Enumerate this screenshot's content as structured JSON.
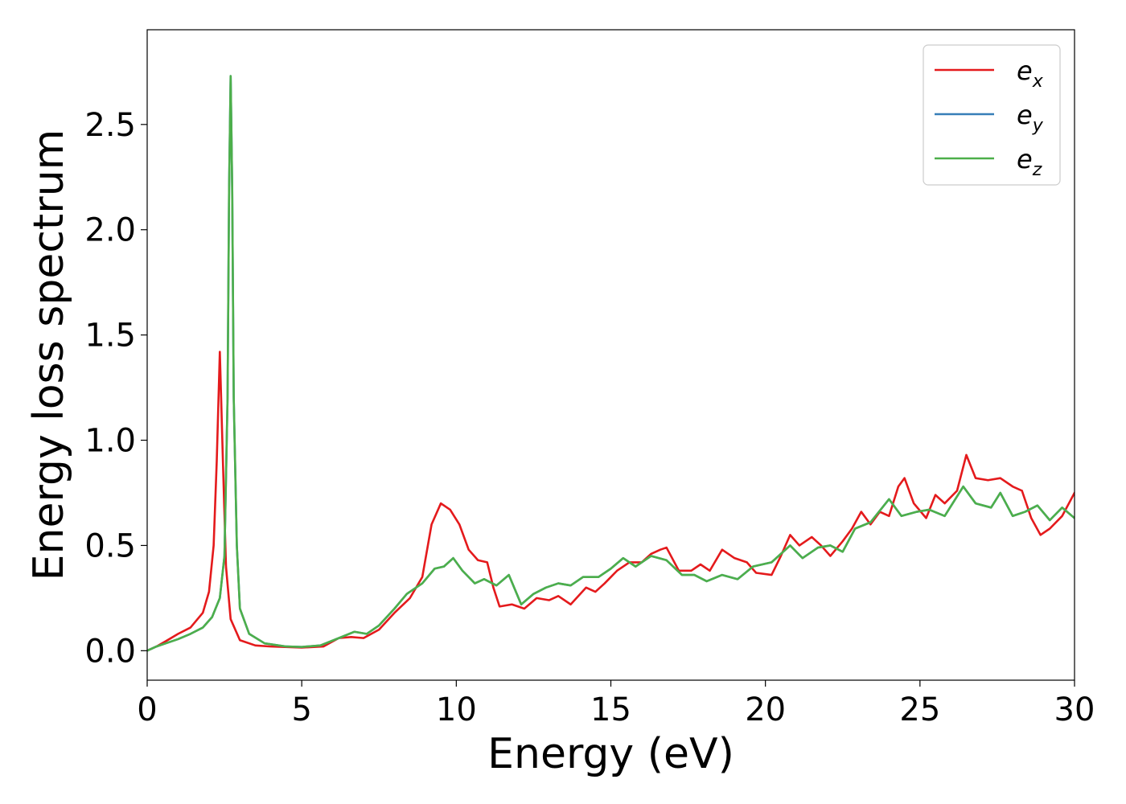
{
  "chart_data": {
    "type": "line",
    "title": "",
    "xlabel": "Energy (eV)",
    "ylabel": "Energy loss spectrum",
    "xlim": [
      0,
      30
    ],
    "ylim": [
      -0.14,
      2.95
    ],
    "xticks": [
      0,
      5,
      10,
      15,
      20,
      25,
      30
    ],
    "yticks": [
      0.0,
      0.5,
      1.0,
      1.5,
      2.0,
      2.5
    ],
    "xtick_labels": [
      "0",
      "5",
      "10",
      "15",
      "20",
      "25",
      "30"
    ],
    "ytick_labels": [
      "0.0",
      "0.5",
      "1.0",
      "1.5",
      "2.0",
      "2.5"
    ],
    "grid": false,
    "legend_position": "top-right",
    "series": [
      {
        "name": "e",
        "sub": "x",
        "color": "#e41a1c",
        "points": [
          [
            0,
            0.0
          ],
          [
            0.3,
            0.02
          ],
          [
            0.6,
            0.045
          ],
          [
            1.0,
            0.08
          ],
          [
            1.4,
            0.11
          ],
          [
            1.8,
            0.18
          ],
          [
            2.0,
            0.28
          ],
          [
            2.15,
            0.5
          ],
          [
            2.25,
            0.9
          ],
          [
            2.35,
            1.42
          ],
          [
            2.45,
            0.9
          ],
          [
            2.55,
            0.4
          ],
          [
            2.7,
            0.15
          ],
          [
            3.0,
            0.05
          ],
          [
            3.5,
            0.025
          ],
          [
            4.0,
            0.02
          ],
          [
            5.0,
            0.015
          ],
          [
            5.7,
            0.02
          ],
          [
            6.2,
            0.06
          ],
          [
            6.6,
            0.065
          ],
          [
            7.0,
            0.06
          ],
          [
            7.5,
            0.1
          ],
          [
            8.0,
            0.18
          ],
          [
            8.5,
            0.25
          ],
          [
            8.9,
            0.35
          ],
          [
            9.2,
            0.6
          ],
          [
            9.5,
            0.7
          ],
          [
            9.8,
            0.67
          ],
          [
            10.1,
            0.6
          ],
          [
            10.4,
            0.48
          ],
          [
            10.7,
            0.43
          ],
          [
            11.0,
            0.42
          ],
          [
            11.2,
            0.3
          ],
          [
            11.4,
            0.21
          ],
          [
            11.8,
            0.22
          ],
          [
            12.2,
            0.2
          ],
          [
            12.6,
            0.25
          ],
          [
            13.0,
            0.24
          ],
          [
            13.3,
            0.26
          ],
          [
            13.7,
            0.22
          ],
          [
            14.2,
            0.3
          ],
          [
            14.5,
            0.28
          ],
          [
            14.8,
            0.32
          ],
          [
            15.2,
            0.38
          ],
          [
            15.6,
            0.42
          ],
          [
            16.0,
            0.42
          ],
          [
            16.3,
            0.46
          ],
          [
            16.6,
            0.48
          ],
          [
            16.8,
            0.49
          ],
          [
            17.2,
            0.38
          ],
          [
            17.6,
            0.38
          ],
          [
            17.9,
            0.41
          ],
          [
            18.2,
            0.38
          ],
          [
            18.6,
            0.48
          ],
          [
            19.0,
            0.44
          ],
          [
            19.4,
            0.42
          ],
          [
            19.7,
            0.37
          ],
          [
            20.2,
            0.36
          ],
          [
            20.5,
            0.45
          ],
          [
            20.8,
            0.55
          ],
          [
            21.1,
            0.5
          ],
          [
            21.5,
            0.54
          ],
          [
            21.8,
            0.5
          ],
          [
            22.1,
            0.45
          ],
          [
            22.5,
            0.52
          ],
          [
            22.8,
            0.58
          ],
          [
            23.1,
            0.66
          ],
          [
            23.4,
            0.6
          ],
          [
            23.7,
            0.66
          ],
          [
            24.0,
            0.64
          ],
          [
            24.3,
            0.78
          ],
          [
            24.5,
            0.82
          ],
          [
            24.8,
            0.7
          ],
          [
            25.2,
            0.63
          ],
          [
            25.5,
            0.74
          ],
          [
            25.8,
            0.7
          ],
          [
            26.2,
            0.76
          ],
          [
            26.5,
            0.93
          ],
          [
            26.8,
            0.82
          ],
          [
            27.2,
            0.81
          ],
          [
            27.6,
            0.82
          ],
          [
            28.0,
            0.78
          ],
          [
            28.3,
            0.76
          ],
          [
            28.6,
            0.63
          ],
          [
            28.9,
            0.55
          ],
          [
            29.2,
            0.58
          ],
          [
            29.6,
            0.64
          ],
          [
            30.0,
            0.75
          ]
        ]
      },
      {
        "name": "e",
        "sub": "y",
        "color": "#377eb8",
        "points": [
          [
            0,
            0.0
          ],
          [
            0.3,
            0.02
          ],
          [
            0.6,
            0.035
          ],
          [
            1.0,
            0.055
          ],
          [
            1.4,
            0.08
          ],
          [
            1.8,
            0.11
          ],
          [
            2.1,
            0.16
          ],
          [
            2.35,
            0.25
          ],
          [
            2.5,
            0.45
          ],
          [
            2.6,
            1.2
          ],
          [
            2.65,
            2.2
          ],
          [
            2.7,
            2.73
          ],
          [
            2.75,
            2.2
          ],
          [
            2.8,
            1.2
          ],
          [
            2.9,
            0.5
          ],
          [
            3.0,
            0.2
          ],
          [
            3.3,
            0.08
          ],
          [
            3.8,
            0.035
          ],
          [
            4.5,
            0.02
          ],
          [
            5.0,
            0.018
          ],
          [
            5.6,
            0.025
          ],
          [
            6.2,
            0.06
          ],
          [
            6.7,
            0.09
          ],
          [
            7.1,
            0.08
          ],
          [
            7.5,
            0.12
          ],
          [
            8.0,
            0.2
          ],
          [
            8.4,
            0.27
          ],
          [
            8.9,
            0.32
          ],
          [
            9.3,
            0.39
          ],
          [
            9.6,
            0.4
          ],
          [
            9.9,
            0.44
          ],
          [
            10.2,
            0.38
          ],
          [
            10.6,
            0.32
          ],
          [
            10.9,
            0.34
          ],
          [
            11.3,
            0.31
          ],
          [
            11.7,
            0.36
          ],
          [
            12.1,
            0.22
          ],
          [
            12.5,
            0.27
          ],
          [
            12.9,
            0.3
          ],
          [
            13.3,
            0.32
          ],
          [
            13.7,
            0.31
          ],
          [
            14.1,
            0.35
          ],
          [
            14.6,
            0.35
          ],
          [
            15.0,
            0.39
          ],
          [
            15.4,
            0.44
          ],
          [
            15.8,
            0.4
          ],
          [
            16.3,
            0.45
          ],
          [
            16.8,
            0.43
          ],
          [
            17.3,
            0.36
          ],
          [
            17.7,
            0.36
          ],
          [
            18.1,
            0.33
          ],
          [
            18.6,
            0.36
          ],
          [
            19.1,
            0.34
          ],
          [
            19.6,
            0.4
          ],
          [
            20.2,
            0.42
          ],
          [
            20.8,
            0.5
          ],
          [
            21.2,
            0.44
          ],
          [
            21.7,
            0.49
          ],
          [
            22.1,
            0.5
          ],
          [
            22.5,
            0.47
          ],
          [
            22.9,
            0.58
          ],
          [
            23.4,
            0.61
          ],
          [
            24.0,
            0.72
          ],
          [
            24.4,
            0.64
          ],
          [
            24.9,
            0.66
          ],
          [
            25.3,
            0.67
          ],
          [
            25.8,
            0.64
          ],
          [
            26.4,
            0.78
          ],
          [
            26.8,
            0.7
          ],
          [
            27.3,
            0.68
          ],
          [
            27.6,
            0.75
          ],
          [
            28.0,
            0.64
          ],
          [
            28.4,
            0.66
          ],
          [
            28.8,
            0.69
          ],
          [
            29.2,
            0.62
          ],
          [
            29.6,
            0.68
          ],
          [
            30.0,
            0.63
          ]
        ]
      },
      {
        "name": "e",
        "sub": "z",
        "color": "#4daf4a",
        "points": [
          [
            0,
            0.0
          ],
          [
            0.3,
            0.02
          ],
          [
            0.6,
            0.035
          ],
          [
            1.0,
            0.055
          ],
          [
            1.4,
            0.08
          ],
          [
            1.8,
            0.11
          ],
          [
            2.1,
            0.16
          ],
          [
            2.35,
            0.25
          ],
          [
            2.5,
            0.45
          ],
          [
            2.6,
            1.2
          ],
          [
            2.65,
            2.2
          ],
          [
            2.7,
            2.73
          ],
          [
            2.75,
            2.2
          ],
          [
            2.8,
            1.2
          ],
          [
            2.9,
            0.5
          ],
          [
            3.0,
            0.2
          ],
          [
            3.3,
            0.08
          ],
          [
            3.8,
            0.035
          ],
          [
            4.5,
            0.02
          ],
          [
            5.0,
            0.018
          ],
          [
            5.6,
            0.025
          ],
          [
            6.2,
            0.06
          ],
          [
            6.7,
            0.09
          ],
          [
            7.1,
            0.08
          ],
          [
            7.5,
            0.12
          ],
          [
            8.0,
            0.2
          ],
          [
            8.4,
            0.27
          ],
          [
            8.9,
            0.32
          ],
          [
            9.3,
            0.39
          ],
          [
            9.6,
            0.4
          ],
          [
            9.9,
            0.44
          ],
          [
            10.2,
            0.38
          ],
          [
            10.6,
            0.32
          ],
          [
            10.9,
            0.34
          ],
          [
            11.3,
            0.31
          ],
          [
            11.7,
            0.36
          ],
          [
            12.1,
            0.22
          ],
          [
            12.5,
            0.27
          ],
          [
            12.9,
            0.3
          ],
          [
            13.3,
            0.32
          ],
          [
            13.7,
            0.31
          ],
          [
            14.1,
            0.35
          ],
          [
            14.6,
            0.35
          ],
          [
            15.0,
            0.39
          ],
          [
            15.4,
            0.44
          ],
          [
            15.8,
            0.4
          ],
          [
            16.3,
            0.45
          ],
          [
            16.8,
            0.43
          ],
          [
            17.3,
            0.36
          ],
          [
            17.7,
            0.36
          ],
          [
            18.1,
            0.33
          ],
          [
            18.6,
            0.36
          ],
          [
            19.1,
            0.34
          ],
          [
            19.6,
            0.4
          ],
          [
            20.2,
            0.42
          ],
          [
            20.8,
            0.5
          ],
          [
            21.2,
            0.44
          ],
          [
            21.7,
            0.49
          ],
          [
            22.1,
            0.5
          ],
          [
            22.5,
            0.47
          ],
          [
            22.9,
            0.58
          ],
          [
            23.4,
            0.61
          ],
          [
            24.0,
            0.72
          ],
          [
            24.4,
            0.64
          ],
          [
            24.9,
            0.66
          ],
          [
            25.3,
            0.67
          ],
          [
            25.8,
            0.64
          ],
          [
            26.4,
            0.78
          ],
          [
            26.8,
            0.7
          ],
          [
            27.3,
            0.68
          ],
          [
            27.6,
            0.75
          ],
          [
            28.0,
            0.64
          ],
          [
            28.4,
            0.66
          ],
          [
            28.8,
            0.69
          ],
          [
            29.2,
            0.62
          ],
          [
            29.6,
            0.68
          ],
          [
            30.0,
            0.63
          ]
        ]
      }
    ]
  }
}
